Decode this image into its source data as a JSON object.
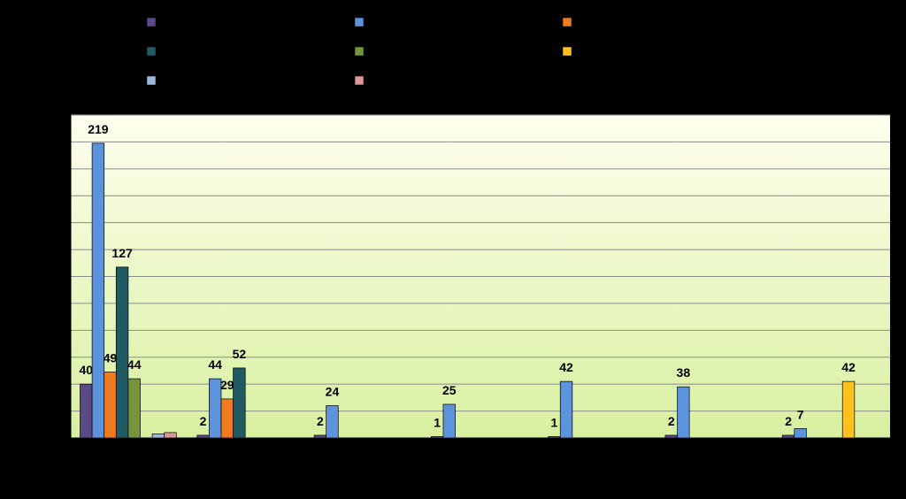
{
  "chart_data": {
    "type": "bar",
    "title": "",
    "xlabel": "",
    "ylabel": "",
    "ylim": [
      0,
      240
    ],
    "grid": true,
    "legend_placement": "top",
    "plot_background": [
      "#ffffee",
      "#d8f0a0"
    ],
    "category_count": 7,
    "series": [
      {
        "name": "",
        "color": "#5c4a86",
        "values": [
          40,
          2,
          2,
          1,
          1,
          2,
          2
        ]
      },
      {
        "name": "",
        "color": "#5b93dc",
        "values": [
          219,
          44,
          24,
          25,
          42,
          38,
          7
        ]
      },
      {
        "name": "",
        "color": "#f07a1e",
        "values": [
          49,
          29,
          null,
          null,
          null,
          null,
          null
        ]
      },
      {
        "name": "",
        "color": "#215a62",
        "values": [
          127,
          52,
          null,
          null,
          null,
          null,
          null
        ]
      },
      {
        "name": "",
        "color": "#77963c",
        "values": [
          44,
          null,
          null,
          null,
          null,
          null,
          null
        ]
      },
      {
        "name": "",
        "color": "#ffc21a",
        "values": [
          null,
          null,
          null,
          null,
          null,
          null,
          42
        ]
      },
      {
        "name": "",
        "color": "#9db8de",
        "values": [
          3,
          null,
          null,
          null,
          null,
          null,
          null
        ]
      },
      {
        "name": "",
        "color": "#d99694",
        "values": [
          4,
          null,
          null,
          null,
          null,
          null,
          null
        ]
      }
    ],
    "data_labels": [
      [
        "40",
        "2",
        "2",
        "1",
        "1",
        "2",
        "2"
      ],
      [
        "219",
        "44",
        "24",
        "25",
        "42",
        "38",
        "7"
      ],
      [
        "49",
        "29",
        null,
        null,
        null,
        null,
        null
      ],
      [
        "127",
        "52",
        null,
        null,
        null,
        null,
        null
      ],
      [
        "44",
        null,
        null,
        null,
        null,
        null,
        null
      ],
      [
        null,
        null,
        null,
        null,
        null,
        null,
        "42"
      ],
      [
        null,
        null,
        null,
        null,
        null,
        null,
        null
      ],
      [
        null,
        null,
        null,
        null,
        null,
        null,
        null
      ]
    ]
  }
}
